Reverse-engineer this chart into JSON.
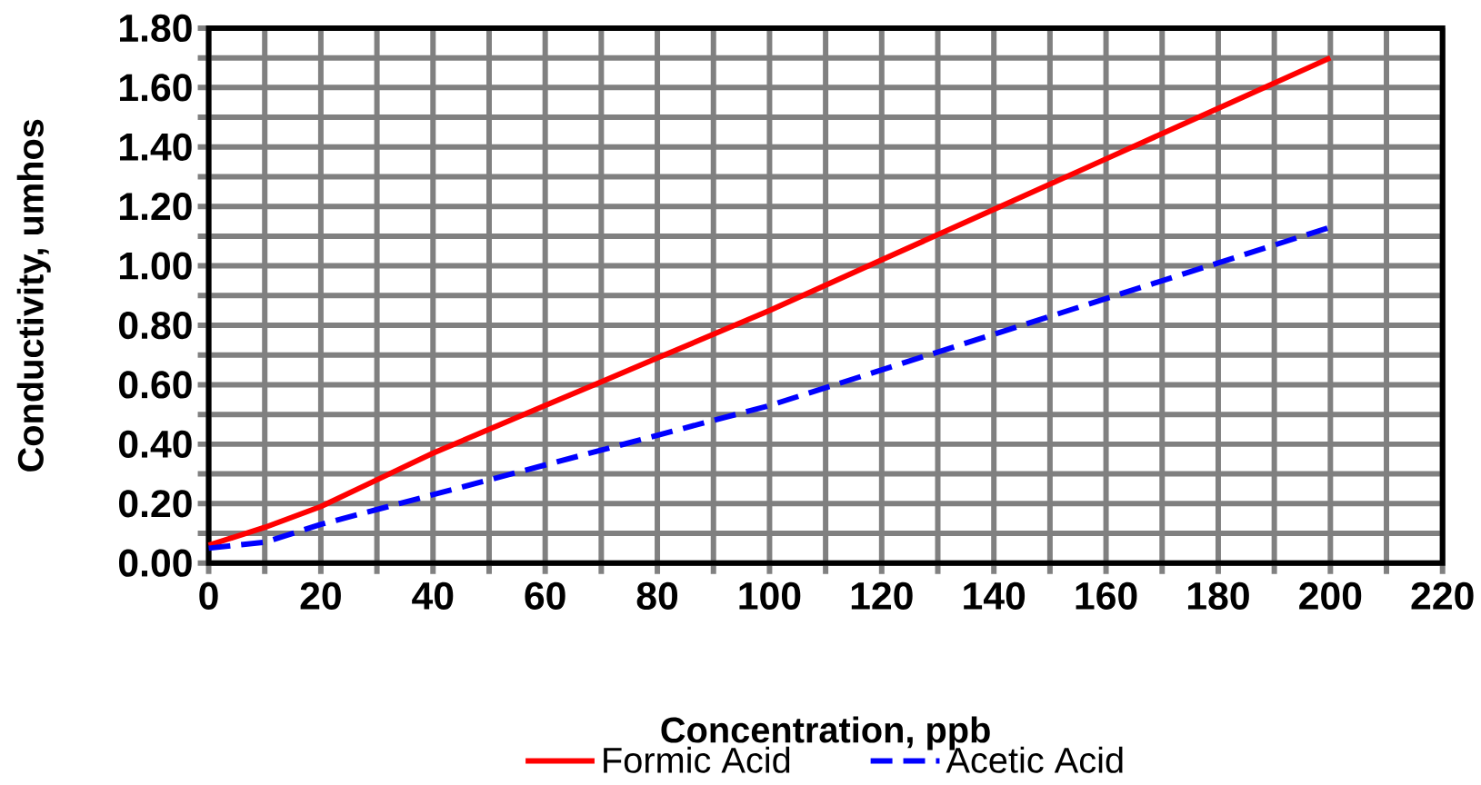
{
  "chart_data": {
    "type": "line",
    "xlabel": "Concentration, ppb",
    "ylabel": "Conductivity, umhos",
    "xlim": [
      0,
      220
    ],
    "ylim": [
      0,
      1.8
    ],
    "xticks": [
      0,
      {
        "value": 10,
        "label": null
      },
      20,
      {
        "value": 30,
        "label": null
      },
      40,
      {
        "value": 50,
        "label": null
      },
      60,
      {
        "value": 70,
        "label": null
      },
      80,
      {
        "value": 90,
        "label": null
      },
      100,
      {
        "value": 110,
        "label": null
      },
      120,
      {
        "value": 130,
        "label": null
      },
      140,
      {
        "value": 150,
        "label": null
      },
      160,
      {
        "value": 170,
        "label": null
      },
      180,
      {
        "value": 190,
        "label": null
      },
      200,
      {
        "value": 210,
        "label": null
      },
      220
    ],
    "yticks": [
      {
        "value": 0,
        "label": "0.00"
      },
      {
        "value": 0.1,
        "label": null
      },
      {
        "value": 0.2,
        "label": "0.20"
      },
      {
        "value": 0.3,
        "label": null
      },
      {
        "value": 0.4,
        "label": "0.40"
      },
      {
        "value": 0.5,
        "label": null
      },
      {
        "value": 0.6,
        "label": "0.60"
      },
      {
        "value": 0.7,
        "label": null
      },
      {
        "value": 0.8,
        "label": "0.80"
      },
      {
        "value": 0.9,
        "label": null
      },
      {
        "value": 1.0,
        "label": "1.00"
      },
      {
        "value": 1.1,
        "label": null
      },
      {
        "value": 1.2,
        "label": "1.20"
      },
      {
        "value": 1.3,
        "label": null
      },
      {
        "value": 1.4,
        "label": "1.40"
      },
      {
        "value": 1.5,
        "label": null
      },
      {
        "value": 1.6,
        "label": "1.60"
      },
      {
        "value": 1.7,
        "label": null
      },
      {
        "value": 1.8,
        "label": "1.80"
      }
    ],
    "grid": true,
    "legend": "bottom",
    "series": [
      {
        "name": "Formic Acid",
        "color": "#ff0000",
        "line_style": "solid",
        "x": [
          0,
          10,
          20,
          30,
          40,
          50,
          60,
          70,
          80,
          100,
          120,
          140,
          160,
          180,
          200
        ],
        "values": [
          0.06,
          0.12,
          0.19,
          0.28,
          0.37,
          0.45,
          0.53,
          0.61,
          0.69,
          0.85,
          1.02,
          1.19,
          1.36,
          1.53,
          1.7
        ]
      },
      {
        "name": "Acetic Acid",
        "color": "#0000ff",
        "line_style": "dashed",
        "x": [
          0,
          10,
          20,
          40,
          60,
          80,
          100,
          120,
          140,
          160,
          180,
          200
        ],
        "values": [
          0.05,
          0.07,
          0.13,
          0.23,
          0.33,
          0.43,
          0.53,
          0.65,
          0.77,
          0.89,
          1.01,
          1.13
        ]
      }
    ]
  }
}
